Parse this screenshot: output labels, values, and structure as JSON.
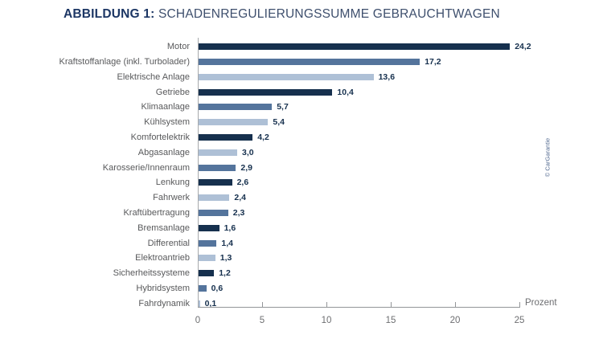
{
  "header": {
    "title_bold": "ABBILDUNG 1:",
    "title_rest": "SCHADENREGULIERUNGSSUMME GEBRAUCHTWAGEN"
  },
  "credit": "© CarGarantie",
  "colors": {
    "dark_bar": "#16304e",
    "medium_bar": "#54749c",
    "light_bar": "#aec0d6",
    "title_navy": "#1c3664",
    "category_label_gray": "#58595b",
    "axis_gray": "#939598",
    "tick_label_gray": "#6d6e71",
    "value_label_navy": "#16304e",
    "credit_blue": "#51688f"
  },
  "chart_data": {
    "type": "bar",
    "orientation": "horizontal",
    "title": "ABBILDUNG 1: SCHADENREGULIERUNGSSUMME GEBRAUCHTWAGEN",
    "xlabel": "Prozent",
    "x_ticks": [
      0,
      5,
      10,
      15,
      20,
      25
    ],
    "xlim": [
      0,
      25
    ],
    "grid": false,
    "legend": false,
    "categories": [
      "Motor",
      "Kraftstoffanlage (inkl. Turbolader)",
      "Elektrische Anlage",
      "Getriebe",
      "Klimaanlage",
      "Kühlsystem",
      "Komfortelektrik",
      "Abgasanlage",
      "Karosserie/Innenraum",
      "Lenkung",
      "Fahrwerk",
      "Kraftübertragung",
      "Bremsanlage",
      "Differential",
      "Elektroantrieb",
      "Sicherheitssysteme",
      "Hybridsystem",
      "Fahrdynamik"
    ],
    "values": [
      24.2,
      17.2,
      13.6,
      10.4,
      5.7,
      5.4,
      4.2,
      3.0,
      2.9,
      2.6,
      2.4,
      2.3,
      1.6,
      1.4,
      1.3,
      1.2,
      0.6,
      0.1
    ],
    "values_display": [
      "24,2",
      "17,2",
      "13,6",
      "10,4",
      "5,7",
      "5,4",
      "4,2",
      "3,0",
      "2,9",
      "2,6",
      "2,4",
      "2,3",
      "1,6",
      "1,4",
      "1,3",
      "1,2",
      "0,6",
      "0,1"
    ],
    "bar_color_roles": [
      "dark",
      "medium",
      "light",
      "dark",
      "medium",
      "light",
      "dark",
      "light",
      "medium",
      "dark",
      "light",
      "medium",
      "dark",
      "medium",
      "light",
      "dark",
      "medium",
      "light"
    ]
  }
}
